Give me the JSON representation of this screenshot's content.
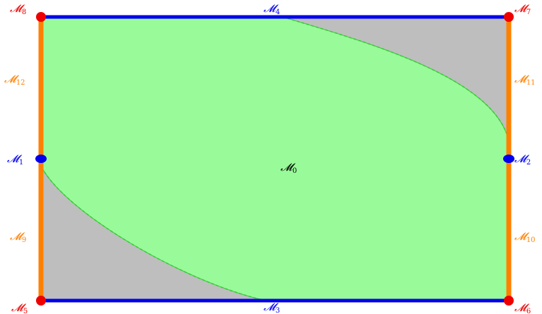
{
  "diagram": {
    "colors": {
      "region_fill": "#99fa99",
      "region_edge": "#33cc33",
      "background_fill": "#bebebe",
      "horizontal_edge": "#0000ee",
      "vertical_edge": "#ff8000",
      "corner_point": "#ee0000",
      "midpoint": "#0000ee",
      "center_label": "#000000"
    },
    "labels": {
      "m0": {
        "base": "𝓜",
        "sub": "0"
      },
      "m1": {
        "base": "𝓜",
        "sub": "1"
      },
      "m2": {
        "base": "𝓜",
        "sub": "2"
      },
      "m3": {
        "base": "𝓜",
        "sub": "3"
      },
      "m4": {
        "base": "𝓜",
        "sub": "4"
      },
      "m5": {
        "base": "𝓜",
        "sub": "5"
      },
      "m6": {
        "base": "𝓜",
        "sub": "6"
      },
      "m7": {
        "base": "𝓜",
        "sub": "7"
      },
      "m8": {
        "base": "𝓜",
        "sub": "8"
      },
      "m9": {
        "base": "𝓜",
        "sub": "9"
      },
      "m10": {
        "base": "𝓜",
        "sub": "10"
      },
      "m11": {
        "base": "𝓜",
        "sub": "11"
      },
      "m12": {
        "base": "𝓜",
        "sub": "12"
      }
    }
  }
}
